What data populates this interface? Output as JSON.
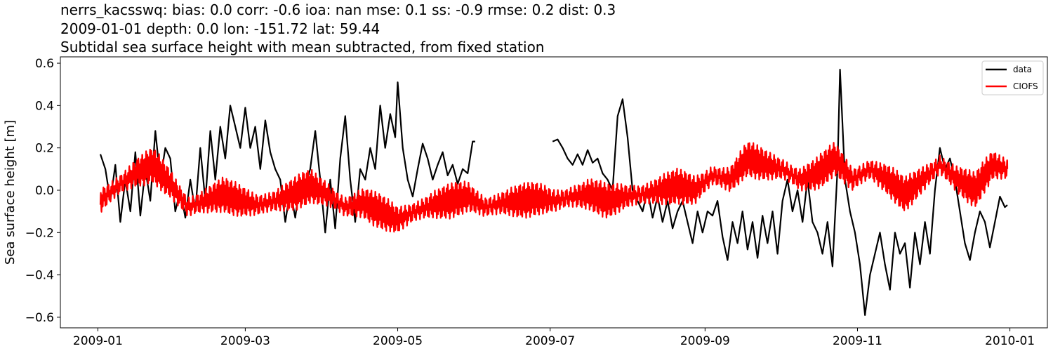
{
  "titles": {
    "line1": "nerrs_kacsswq: bias: 0.0  corr: -0.6  ioa: nan  mse: 0.1  ss: -0.9  rmse: 0.2  dist: 0.3",
    "line2": "2009-01-01 depth: 0.0 lon: -151.72 lat: 59.44",
    "line3": "Subtidal sea surface height with mean subtracted, from fixed station"
  },
  "chart_data": {
    "type": "line",
    "title": "Subtidal sea surface height with mean subtracted, from fixed station",
    "xlabel": "",
    "ylabel": "Sea surface height [m]",
    "xlim": [
      "2008-12-17",
      "2010-01-16"
    ],
    "ylim": [
      -0.65,
      0.63
    ],
    "x_ticks": [
      "2009-01",
      "2009-03",
      "2009-05",
      "2009-07",
      "2009-09",
      "2009-11",
      "2010-01"
    ],
    "y_ticks": [
      -0.6,
      -0.4,
      -0.2,
      0.0,
      0.2,
      0.4,
      0.6
    ],
    "y_tick_labels": [
      "−0.6",
      "−0.4",
      "−0.2",
      "0.0",
      "0.2",
      "0.4",
      "0.6"
    ],
    "grid": false,
    "legend": "top-right",
    "series": [
      {
        "name": "data",
        "color": "#000000",
        "segments": [
          [
            [
              "2009-01-02",
              0.17
            ],
            [
              "2009-01-04",
              0.1
            ],
            [
              "2009-01-06",
              -0.05
            ],
            [
              "2009-01-08",
              0.12
            ],
            [
              "2009-01-10",
              -0.15
            ],
            [
              "2009-01-12",
              0.05
            ],
            [
              "2009-01-14",
              -0.1
            ],
            [
              "2009-01-16",
              0.18
            ],
            [
              "2009-01-18",
              -0.12
            ],
            [
              "2009-01-20",
              0.1
            ],
            [
              "2009-01-22",
              -0.05
            ],
            [
              "2009-01-24",
              0.28
            ],
            [
              "2009-01-26",
              0.05
            ],
            [
              "2009-01-28",
              0.2
            ],
            [
              "2009-01-30",
              0.15
            ],
            [
              "2009-02-01",
              -0.1
            ],
            [
              "2009-02-03",
              0.0
            ],
            [
              "2009-02-05",
              -0.13
            ],
            [
              "2009-02-07",
              0.05
            ],
            [
              "2009-02-09",
              -0.1
            ],
            [
              "2009-02-11",
              0.2
            ],
            [
              "2009-02-13",
              -0.05
            ],
            [
              "2009-02-15",
              0.28
            ],
            [
              "2009-02-17",
              0.05
            ],
            [
              "2009-02-19",
              0.3
            ],
            [
              "2009-02-21",
              0.15
            ],
            [
              "2009-02-23",
              0.4
            ],
            [
              "2009-02-25",
              0.3
            ],
            [
              "2009-02-27",
              0.2
            ],
            [
              "2009-03-01",
              0.39
            ],
            [
              "2009-03-03",
              0.2
            ],
            [
              "2009-03-05",
              0.3
            ],
            [
              "2009-03-07",
              0.1
            ],
            [
              "2009-03-09",
              0.33
            ],
            [
              "2009-03-11",
              0.18
            ],
            [
              "2009-03-13",
              0.1
            ],
            [
              "2009-03-15",
              0.05
            ],
            [
              "2009-03-17",
              -0.15
            ],
            [
              "2009-03-19",
              0.0
            ],
            [
              "2009-03-21",
              -0.13
            ],
            [
              "2009-03-23",
              0.05
            ],
            [
              "2009-03-25",
              0.02
            ],
            [
              "2009-03-27",
              0.1
            ],
            [
              "2009-03-29",
              0.28
            ],
            [
              "2009-03-31",
              0.05
            ],
            [
              "2009-04-02",
              -0.2
            ],
            [
              "2009-04-04",
              0.05
            ],
            [
              "2009-04-06",
              -0.18
            ],
            [
              "2009-04-08",
              0.15
            ],
            [
              "2009-04-10",
              0.35
            ],
            [
              "2009-04-12",
              0.05
            ],
            [
              "2009-04-14",
              -0.15
            ],
            [
              "2009-04-16",
              0.1
            ],
            [
              "2009-04-18",
              0.05
            ],
            [
              "2009-04-20",
              0.2
            ],
            [
              "2009-04-22",
              0.1
            ],
            [
              "2009-04-24",
              0.4
            ],
            [
              "2009-04-26",
              0.2
            ],
            [
              "2009-04-28",
              0.36
            ],
            [
              "2009-04-30",
              0.25
            ],
            [
              "2009-05-01",
              0.51
            ],
            [
              "2009-05-03",
              0.2
            ],
            [
              "2009-05-05",
              0.05
            ],
            [
              "2009-05-07",
              -0.03
            ],
            [
              "2009-05-09",
              0.1
            ],
            [
              "2009-05-11",
              0.22
            ],
            [
              "2009-05-13",
              0.15
            ],
            [
              "2009-05-15",
              0.05
            ],
            [
              "2009-05-17",
              0.12
            ],
            [
              "2009-05-19",
              0.18
            ],
            [
              "2009-05-21",
              0.07
            ],
            [
              "2009-05-23",
              0.12
            ],
            [
              "2009-05-25",
              0.03
            ],
            [
              "2009-05-27",
              0.1
            ],
            [
              "2009-05-29",
              0.08
            ],
            [
              "2009-05-31",
              0.23
            ],
            [
              "2009-06-01",
              0.23
            ]
          ],
          [
            [
              "2009-07-02",
              0.23
            ],
            [
              "2009-07-04",
              0.24
            ],
            [
              "2009-07-06",
              0.2
            ],
            [
              "2009-07-08",
              0.15
            ],
            [
              "2009-07-10",
              0.12
            ],
            [
              "2009-07-12",
              0.17
            ],
            [
              "2009-07-14",
              0.12
            ],
            [
              "2009-07-16",
              0.19
            ],
            [
              "2009-07-18",
              0.13
            ],
            [
              "2009-07-20",
              0.15
            ],
            [
              "2009-07-22",
              0.08
            ],
            [
              "2009-07-24",
              0.05
            ],
            [
              "2009-07-26",
              0.0
            ],
            [
              "2009-07-28",
              0.35
            ],
            [
              "2009-07-30",
              0.43
            ],
            [
              "2009-08-01",
              0.25
            ],
            [
              "2009-08-03",
              0.0
            ],
            [
              "2009-08-05",
              -0.05
            ],
            [
              "2009-08-07",
              -0.1
            ],
            [
              "2009-08-09",
              0.0
            ],
            [
              "2009-08-11",
              -0.13
            ],
            [
              "2009-08-13",
              -0.03
            ],
            [
              "2009-08-15",
              -0.15
            ],
            [
              "2009-08-17",
              -0.05
            ],
            [
              "2009-08-19",
              -0.18
            ],
            [
              "2009-08-21",
              -0.1
            ],
            [
              "2009-08-23",
              -0.05
            ],
            [
              "2009-08-25",
              -0.15
            ],
            [
              "2009-08-27",
              -0.25
            ],
            [
              "2009-08-29",
              -0.1
            ],
            [
              "2009-08-31",
              -0.2
            ],
            [
              "2009-09-02",
              -0.1
            ],
            [
              "2009-09-04",
              -0.12
            ],
            [
              "2009-09-06",
              -0.05
            ],
            [
              "2009-09-08",
              -0.22
            ],
            [
              "2009-09-10",
              -0.33
            ],
            [
              "2009-09-12",
              -0.15
            ],
            [
              "2009-09-14",
              -0.25
            ],
            [
              "2009-09-16",
              -0.1
            ],
            [
              "2009-09-18",
              -0.28
            ],
            [
              "2009-09-20",
              -0.15
            ],
            [
              "2009-09-22",
              -0.32
            ],
            [
              "2009-09-24",
              -0.12
            ],
            [
              "2009-09-26",
              -0.25
            ],
            [
              "2009-09-28",
              -0.1
            ],
            [
              "2009-09-30",
              -0.3
            ],
            [
              "2009-10-02",
              -0.05
            ],
            [
              "2009-10-04",
              0.05
            ],
            [
              "2009-10-06",
              -0.1
            ],
            [
              "2009-10-08",
              0.0
            ],
            [
              "2009-10-10",
              -0.15
            ],
            [
              "2009-10-12",
              0.05
            ],
            [
              "2009-10-14",
              -0.15
            ],
            [
              "2009-10-16",
              -0.2
            ],
            [
              "2009-10-18",
              -0.3
            ],
            [
              "2009-10-20",
              -0.15
            ],
            [
              "2009-10-22",
              -0.36
            ],
            [
              "2009-10-24",
              0.1
            ],
            [
              "2009-10-25",
              0.57
            ],
            [
              "2009-10-27",
              0.05
            ],
            [
              "2009-10-29",
              -0.1
            ],
            [
              "2009-10-31",
              -0.2
            ],
            [
              "2009-11-02",
              -0.35
            ],
            [
              "2009-11-04",
              -0.59
            ],
            [
              "2009-11-06",
              -0.4
            ],
            [
              "2009-11-08",
              -0.3
            ],
            [
              "2009-11-10",
              -0.2
            ],
            [
              "2009-11-12",
              -0.35
            ],
            [
              "2009-11-14",
              -0.47
            ],
            [
              "2009-11-16",
              -0.2
            ],
            [
              "2009-11-18",
              -0.3
            ],
            [
              "2009-11-20",
              -0.25
            ],
            [
              "2009-11-22",
              -0.46
            ],
            [
              "2009-11-24",
              -0.2
            ],
            [
              "2009-11-26",
              -0.35
            ],
            [
              "2009-11-28",
              -0.15
            ],
            [
              "2009-11-30",
              -0.3
            ],
            [
              "2009-12-02",
              0.0
            ],
            [
              "2009-12-04",
              0.2
            ],
            [
              "2009-12-06",
              0.1
            ],
            [
              "2009-12-08",
              0.15
            ],
            [
              "2009-12-10",
              0.05
            ],
            [
              "2009-12-12",
              -0.1
            ],
            [
              "2009-12-14",
              -0.25
            ],
            [
              "2009-12-16",
              -0.33
            ],
            [
              "2009-12-18",
              -0.2
            ],
            [
              "2009-12-20",
              -0.1
            ],
            [
              "2009-12-22",
              -0.15
            ],
            [
              "2009-12-24",
              -0.27
            ],
            [
              "2009-12-26",
              -0.15
            ],
            [
              "2009-12-28",
              -0.03
            ],
            [
              "2009-12-30",
              -0.08
            ],
            [
              "2009-12-31",
              -0.07
            ]
          ]
        ]
      },
      {
        "name": "CIOFS",
        "color": "#ff0000",
        "segments": [
          [
            [
              "2009-01-02",
              -0.05
            ],
            [
              "2009-01-09",
              0.02
            ],
            [
              "2009-01-16",
              0.08
            ],
            [
              "2009-01-23",
              0.12
            ],
            [
              "2009-01-30",
              0.03
            ],
            [
              "2009-02-06",
              -0.08
            ],
            [
              "2009-02-13",
              -0.05
            ],
            [
              "2009-02-20",
              -0.02
            ],
            [
              "2009-02-27",
              -0.05
            ],
            [
              "2009-03-06",
              -0.07
            ],
            [
              "2009-03-13",
              -0.05
            ],
            [
              "2009-03-20",
              -0.02
            ],
            [
              "2009-03-27",
              0.02
            ],
            [
              "2009-04-03",
              -0.02
            ],
            [
              "2009-04-10",
              -0.08
            ],
            [
              "2009-04-17",
              -0.06
            ],
            [
              "2009-04-24",
              -0.1
            ],
            [
              "2009-05-01",
              -0.14
            ],
            [
              "2009-05-08",
              -0.1
            ],
            [
              "2009-05-15",
              -0.07
            ],
            [
              "2009-05-22",
              -0.05
            ],
            [
              "2009-05-29",
              -0.03
            ],
            [
              "2009-06-05",
              -0.08
            ],
            [
              "2009-06-12",
              -0.06
            ],
            [
              "2009-06-19",
              -0.05
            ],
            [
              "2009-06-26",
              -0.04
            ],
            [
              "2009-07-03",
              -0.05
            ],
            [
              "2009-07-10",
              -0.03
            ],
            [
              "2009-07-17",
              -0.02
            ],
            [
              "2009-07-24",
              -0.05
            ],
            [
              "2009-07-31",
              -0.03
            ],
            [
              "2009-08-07",
              -0.02
            ],
            [
              "2009-08-14",
              0.0
            ],
            [
              "2009-08-21",
              0.02
            ],
            [
              "2009-08-28",
              0.0
            ],
            [
              "2009-09-04",
              0.07
            ],
            [
              "2009-09-11",
              0.05
            ],
            [
              "2009-09-18",
              0.15
            ],
            [
              "2009-09-25",
              0.12
            ],
            [
              "2009-10-02",
              0.1
            ],
            [
              "2009-10-09",
              0.05
            ],
            [
              "2009-10-16",
              0.08
            ],
            [
              "2009-10-23",
              0.15
            ],
            [
              "2009-10-30",
              0.05
            ],
            [
              "2009-11-06",
              0.1
            ],
            [
              "2009-11-13",
              0.05
            ],
            [
              "2009-11-20",
              -0.02
            ],
            [
              "2009-11-27",
              0.05
            ],
            [
              "2009-12-04",
              0.12
            ],
            [
              "2009-12-11",
              0.05
            ],
            [
              "2009-12-18",
              0.0
            ],
            [
              "2009-12-25",
              0.12
            ],
            [
              "2009-12-31",
              0.1
            ]
          ]
        ]
      }
    ]
  }
}
